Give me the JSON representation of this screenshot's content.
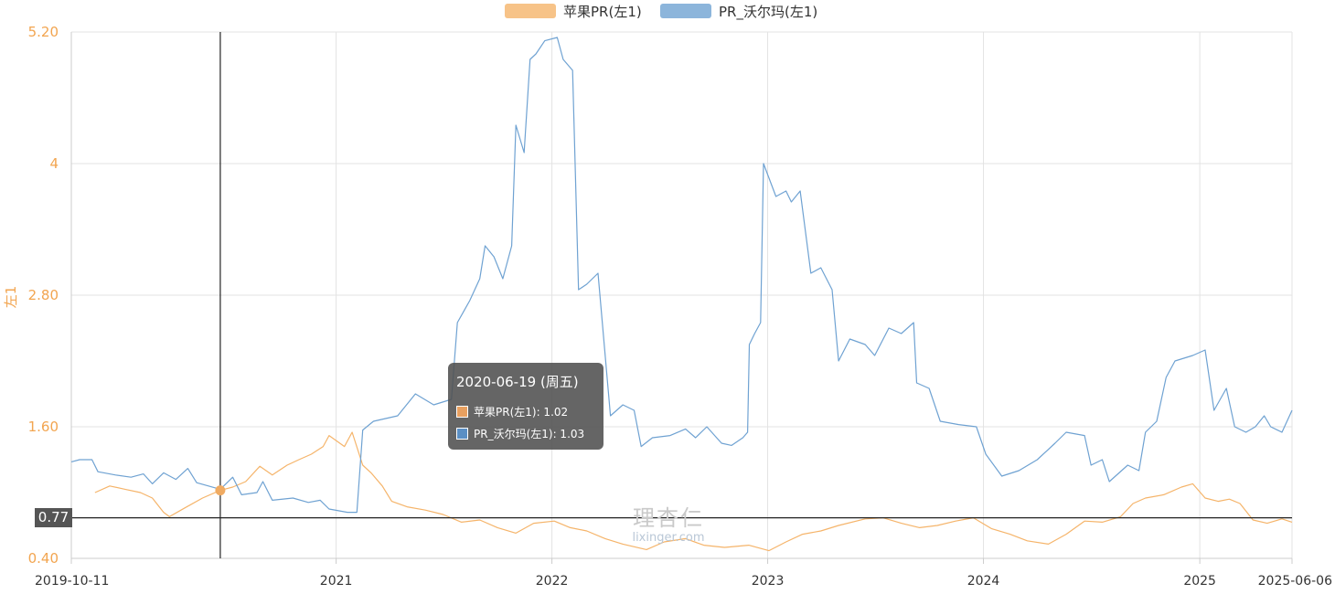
{
  "chart_data": {
    "type": "line",
    "x_range": [
      "2019-10-11",
      "2025-06-06"
    ],
    "x_tick_labels": [
      "2019-10-11",
      "2021",
      "2022",
      "2023",
      "2024",
      "2025",
      "2025-06-06"
    ],
    "ylabel": "左1",
    "y_tick_labels": [
      "0.40",
      "1.60",
      "2.80",
      "4",
      "5.20"
    ],
    "ylim": [
      0.4,
      5.2
    ],
    "grid": true,
    "legend_position": "top-center",
    "series": [
      {
        "name": "苹果PR(左1)",
        "color": "#f5b46a",
        "points": [
          [
            "2019-11-20",
            1.0
          ],
          [
            "2019-12-15",
            1.06
          ],
          [
            "2020-01-10",
            1.03
          ],
          [
            "2020-02-05",
            1.0
          ],
          [
            "2020-02-25",
            0.95
          ],
          [
            "2020-03-15",
            0.82
          ],
          [
            "2020-03-25",
            0.78
          ],
          [
            "2020-04-20",
            0.86
          ],
          [
            "2020-05-20",
            0.95
          ],
          [
            "2020-06-19",
            1.02
          ],
          [
            "2020-07-10",
            1.05
          ],
          [
            "2020-08-01",
            1.1
          ],
          [
            "2020-08-25",
            1.24
          ],
          [
            "2020-09-15",
            1.16
          ],
          [
            "2020-10-10",
            1.25
          ],
          [
            "2020-10-30",
            1.3
          ],
          [
            "2020-11-20",
            1.35
          ],
          [
            "2020-12-10",
            1.42
          ],
          [
            "2020-12-20",
            1.52
          ],
          [
            "2021-01-15",
            1.42
          ],
          [
            "2021-01-28",
            1.55
          ],
          [
            "2021-02-15",
            1.25
          ],
          [
            "2021-03-01",
            1.18
          ],
          [
            "2021-03-20",
            1.06
          ],
          [
            "2021-04-05",
            0.92
          ],
          [
            "2021-05-01",
            0.87
          ],
          [
            "2021-06-01",
            0.84
          ],
          [
            "2021-07-01",
            0.8
          ],
          [
            "2021-08-01",
            0.73
          ],
          [
            "2021-09-01",
            0.75
          ],
          [
            "2021-10-01",
            0.68
          ],
          [
            "2021-11-01",
            0.63
          ],
          [
            "2021-12-01",
            0.72
          ],
          [
            "2022-01-05",
            0.74
          ],
          [
            "2022-02-01",
            0.68
          ],
          [
            "2022-03-01",
            0.65
          ],
          [
            "2022-04-01",
            0.58
          ],
          [
            "2022-05-01",
            0.53
          ],
          [
            "2022-06-10",
            0.48
          ],
          [
            "2022-07-10",
            0.55
          ],
          [
            "2022-08-15",
            0.58
          ],
          [
            "2022-09-15",
            0.52
          ],
          [
            "2022-10-20",
            0.5
          ],
          [
            "2022-11-30",
            0.52
          ],
          [
            "2023-01-03",
            0.47
          ],
          [
            "2023-02-01",
            0.55
          ],
          [
            "2023-03-01",
            0.62
          ],
          [
            "2023-04-01",
            0.65
          ],
          [
            "2023-05-01",
            0.7
          ],
          [
            "2023-06-15",
            0.76
          ],
          [
            "2023-07-15",
            0.77
          ],
          [
            "2023-08-15",
            0.72
          ],
          [
            "2023-09-15",
            0.68
          ],
          [
            "2023-10-15",
            0.7
          ],
          [
            "2023-11-15",
            0.74
          ],
          [
            "2023-12-15",
            0.77
          ],
          [
            "2024-01-15",
            0.67
          ],
          [
            "2024-02-15",
            0.62
          ],
          [
            "2024-03-15",
            0.56
          ],
          [
            "2024-04-20",
            0.53
          ],
          [
            "2024-05-20",
            0.62
          ],
          [
            "2024-06-20",
            0.74
          ],
          [
            "2024-07-20",
            0.73
          ],
          [
            "2024-08-20",
            0.78
          ],
          [
            "2024-09-10",
            0.9
          ],
          [
            "2024-10-01",
            0.95
          ],
          [
            "2024-11-01",
            0.98
          ],
          [
            "2024-12-01",
            1.05
          ],
          [
            "2024-12-20",
            1.08
          ],
          [
            "2025-01-10",
            0.95
          ],
          [
            "2025-02-01",
            0.92
          ],
          [
            "2025-02-20",
            0.94
          ],
          [
            "2025-03-10",
            0.9
          ],
          [
            "2025-04-01",
            0.75
          ],
          [
            "2025-04-25",
            0.72
          ],
          [
            "2025-05-20",
            0.76
          ],
          [
            "2025-06-06",
            0.73
          ]
        ]
      },
      {
        "name": "PR_沃尔玛(左1)",
        "color": "#6fa2d2",
        "points": [
          [
            "2019-10-11",
            1.28
          ],
          [
            "2019-10-25",
            1.3
          ],
          [
            "2019-11-15",
            1.3
          ],
          [
            "2019-11-25",
            1.19
          ],
          [
            "2019-12-25",
            1.16
          ],
          [
            "2020-01-20",
            1.14
          ],
          [
            "2020-02-10",
            1.17
          ],
          [
            "2020-02-25",
            1.08
          ],
          [
            "2020-03-15",
            1.18
          ],
          [
            "2020-04-05",
            1.12
          ],
          [
            "2020-04-25",
            1.22
          ],
          [
            "2020-05-10",
            1.09
          ],
          [
            "2020-06-19",
            1.03
          ],
          [
            "2020-07-10",
            1.14
          ],
          [
            "2020-07-25",
            0.98
          ],
          [
            "2020-08-20",
            1.0
          ],
          [
            "2020-08-30",
            1.1
          ],
          [
            "2020-09-15",
            0.93
          ],
          [
            "2020-10-20",
            0.95
          ],
          [
            "2020-11-15",
            0.91
          ],
          [
            "2020-12-05",
            0.93
          ],
          [
            "2020-12-20",
            0.85
          ],
          [
            "2021-01-20",
            0.82
          ],
          [
            "2021-02-05",
            0.82
          ],
          [
            "2021-02-15",
            1.57
          ],
          [
            "2021-03-05",
            1.65
          ],
          [
            "2021-04-15",
            1.7
          ],
          [
            "2021-05-15",
            1.9
          ],
          [
            "2021-06-15",
            1.8
          ],
          [
            "2021-07-15",
            1.85
          ],
          [
            "2021-07-25",
            2.55
          ],
          [
            "2021-08-15",
            2.75
          ],
          [
            "2021-09-01",
            2.95
          ],
          [
            "2021-09-10",
            3.25
          ],
          [
            "2021-09-25",
            3.15
          ],
          [
            "2021-10-10",
            2.95
          ],
          [
            "2021-10-25",
            3.25
          ],
          [
            "2021-11-01",
            4.35
          ],
          [
            "2021-11-15",
            4.1
          ],
          [
            "2021-11-25",
            4.95
          ],
          [
            "2021-12-05",
            5.0
          ],
          [
            "2021-12-20",
            5.12
          ],
          [
            "2022-01-10",
            5.15
          ],
          [
            "2022-01-20",
            4.95
          ],
          [
            "2022-02-05",
            4.85
          ],
          [
            "2022-02-15",
            2.85
          ],
          [
            "2022-03-01",
            2.9
          ],
          [
            "2022-03-20",
            3.0
          ],
          [
            "2022-04-10",
            1.7
          ],
          [
            "2022-05-01",
            1.8
          ],
          [
            "2022-05-20",
            1.75
          ],
          [
            "2022-06-01",
            1.42
          ],
          [
            "2022-06-20",
            1.5
          ],
          [
            "2022-07-20",
            1.52
          ],
          [
            "2022-08-15",
            1.58
          ],
          [
            "2022-09-01",
            1.5
          ],
          [
            "2022-09-20",
            1.6
          ],
          [
            "2022-10-15",
            1.45
          ],
          [
            "2022-11-01",
            1.43
          ],
          [
            "2022-11-20",
            1.5
          ],
          [
            "2022-11-28",
            1.55
          ],
          [
            "2022-12-01",
            2.35
          ],
          [
            "2022-12-10",
            2.45
          ],
          [
            "2022-12-20",
            2.55
          ],
          [
            "2022-12-25",
            4.0
          ],
          [
            "2023-01-15",
            3.7
          ],
          [
            "2023-02-01",
            3.75
          ],
          [
            "2023-02-10",
            3.65
          ],
          [
            "2023-02-25",
            3.75
          ],
          [
            "2023-03-15",
            3.0
          ],
          [
            "2023-04-01",
            3.05
          ],
          [
            "2023-04-20",
            2.85
          ],
          [
            "2023-05-01",
            2.2
          ],
          [
            "2023-05-20",
            2.4
          ],
          [
            "2023-06-15",
            2.35
          ],
          [
            "2023-07-01",
            2.25
          ],
          [
            "2023-07-25",
            2.5
          ],
          [
            "2023-08-15",
            2.45
          ],
          [
            "2023-09-05",
            2.55
          ],
          [
            "2023-09-10",
            2.0
          ],
          [
            "2023-10-01",
            1.95
          ],
          [
            "2023-10-20",
            1.65
          ],
          [
            "2023-11-20",
            1.62
          ],
          [
            "2023-12-20",
            1.6
          ],
          [
            "2024-01-05",
            1.35
          ],
          [
            "2024-02-01",
            1.15
          ],
          [
            "2024-03-01",
            1.2
          ],
          [
            "2024-04-01",
            1.3
          ],
          [
            "2024-05-01",
            1.45
          ],
          [
            "2024-05-20",
            1.55
          ],
          [
            "2024-06-20",
            1.52
          ],
          [
            "2024-07-01",
            1.25
          ],
          [
            "2024-07-20",
            1.3
          ],
          [
            "2024-08-01",
            1.1
          ],
          [
            "2024-09-01",
            1.25
          ],
          [
            "2024-09-20",
            1.2
          ],
          [
            "2024-10-01",
            1.55
          ],
          [
            "2024-10-20",
            1.65
          ],
          [
            "2024-11-05",
            2.05
          ],
          [
            "2024-11-20",
            2.2
          ],
          [
            "2024-12-20",
            2.25
          ],
          [
            "2025-01-10",
            2.3
          ],
          [
            "2025-01-25",
            1.75
          ],
          [
            "2025-02-15",
            1.95
          ],
          [
            "2025-03-01",
            1.6
          ],
          [
            "2025-03-20",
            1.55
          ],
          [
            "2025-04-05",
            1.6
          ],
          [
            "2025-04-20",
            1.7
          ],
          [
            "2025-05-01",
            1.6
          ],
          [
            "2025-05-20",
            1.55
          ],
          [
            "2025-06-06",
            1.75
          ]
        ]
      }
    ]
  },
  "crosshair": {
    "y_value_label": "0.77",
    "date": "2020-06-19"
  },
  "tooltip": {
    "date_label": "2020-06-19 (周五)",
    "rows": [
      {
        "label": "苹果PR(左1): 1.02",
        "color": "#e8a060"
      },
      {
        "label": "PR_沃尔玛(左1): 1.03",
        "color": "#5b8fc4"
      }
    ]
  },
  "watermark": {
    "logo_text": "理杏仁",
    "site": "lixinger.com"
  }
}
